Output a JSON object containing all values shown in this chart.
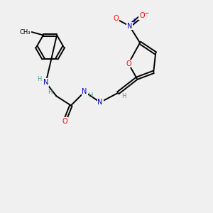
{
  "background_color": "#f0f0f0",
  "atom_colors": {
    "C": "#000000",
    "N": "#0000cc",
    "O": "#ff0000",
    "H": "#4a9e8e"
  },
  "bond_color": "#000000",
  "figsize": [
    3.0,
    3.0
  ],
  "dpi": 100
}
